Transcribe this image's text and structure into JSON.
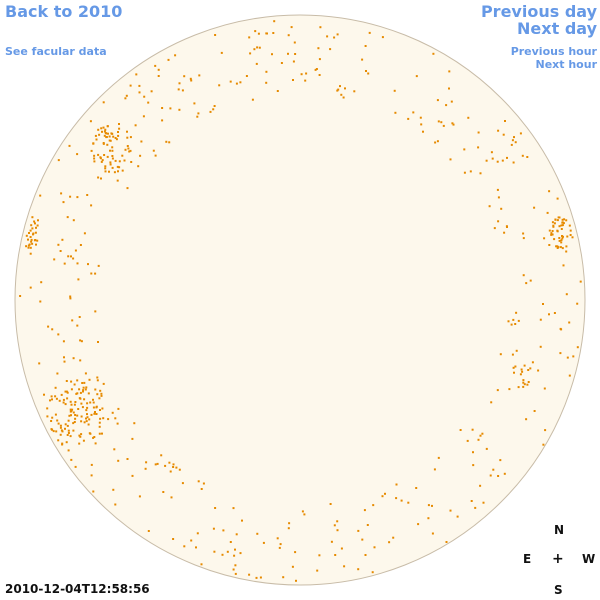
{
  "nav": {
    "back": "Back to 2010",
    "facular": "See facular data",
    "previous_day": "Previous day",
    "next_day": "Next day",
    "previous_hour": "Previous hour",
    "next_hour": "Next hour"
  },
  "timestamp": "2010-12-04T12:58:56",
  "compass": {
    "north": "N",
    "east": "E",
    "center": "+",
    "west": "W",
    "south": "S"
  },
  "colors": {
    "link": "#6699e6",
    "disk_fill": "#fdf8ec",
    "disk_stroke": "#c8bca8",
    "facula_marker": "#e68a00"
  }
}
